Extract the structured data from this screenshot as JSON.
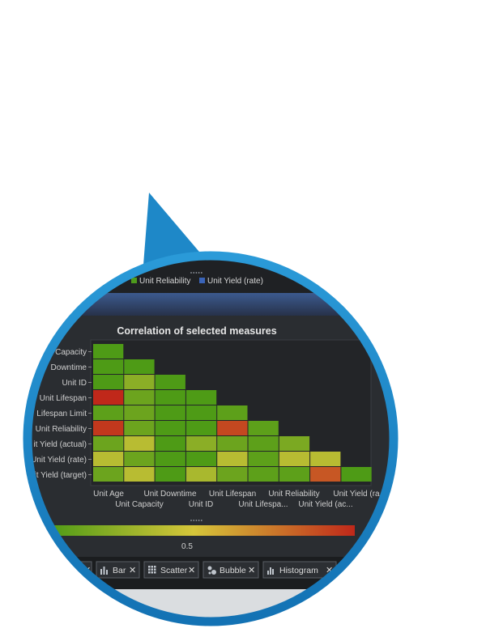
{
  "legend_strip": {
    "items": [
      {
        "label": "Unit Reliability",
        "color": "#4e9a1c"
      },
      {
        "label": "Unit Yield (rate)",
        "color": "#3a64b8"
      }
    ]
  },
  "chart_data": {
    "type": "heatmap",
    "title": "Correlation of selected measures",
    "y_labels": [
      "Capacity",
      "Downtime",
      "Unit ID",
      "Unit Lifespan",
      "Lifespan Limit",
      "Unit Reliability",
      "it Yield (actual)",
      "Unit Yield (rate)",
      "it Yield (target)"
    ],
    "x_labels_row1": [
      "Unit Age",
      "Unit Downtime",
      "Unit Lifespan",
      "Unit Reliability",
      "Unit Yield (ra"
    ],
    "x_labels_row2": [
      "Unit Capacity",
      "Unit ID",
      "Unit Lifespa...",
      "Unit Yield (ac..."
    ],
    "values": [
      [
        0.05
      ],
      [
        0.05,
        0.05
      ],
      [
        0.05,
        0.25,
        0.05
      ],
      [
        1.0,
        0.15,
        0.05,
        0.05
      ],
      [
        0.1,
        0.15,
        0.05,
        0.05,
        0.1
      ],
      [
        0.95,
        0.15,
        0.05,
        0.05,
        0.9,
        0.1
      ],
      [
        0.15,
        0.4,
        0.05,
        0.25,
        0.15,
        0.1,
        0.2
      ],
      [
        0.4,
        0.15,
        0.05,
        0.05,
        0.4,
        0.1,
        0.4,
        0.4
      ],
      [
        0.15,
        0.4,
        0.05,
        0.35,
        0.15,
        0.1,
        0.1,
        0.85,
        0.05
      ]
    ],
    "color_scale": {
      "min_color": "#3f9612",
      "mid_color": "#d6c63a",
      "max_color": "#c0281a",
      "tick_label": "0.5"
    },
    "grid": false
  },
  "toolbar": {
    "tabs": [
      {
        "label": "Bar",
        "icon": "bar-chart-icon",
        "close": "✕"
      },
      {
        "label": "Scatter",
        "icon": "scatter-icon",
        "close": "✕"
      },
      {
        "label": "Bubble",
        "icon": "bubble-icon",
        "close": "✕"
      },
      {
        "label": "Histogram",
        "icon": "histogram-icon",
        "close": "✕"
      }
    ]
  },
  "colors": {
    "callout_blue": "#1e88c8",
    "panel_bg": "#2a2d31",
    "plot_bg": "#232528"
  }
}
